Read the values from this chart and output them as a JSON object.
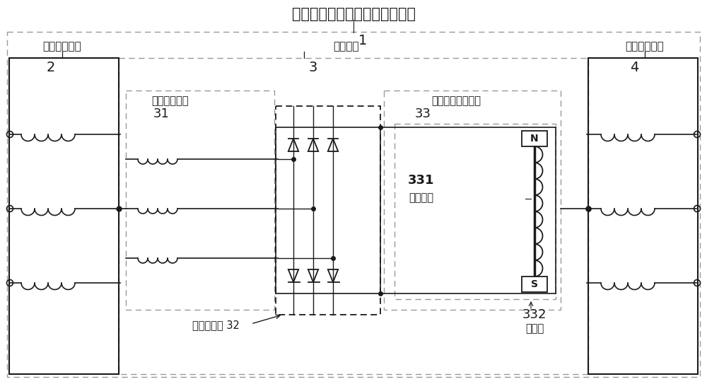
{
  "title": "无刷交流复合励磁无刷直流电机",
  "label_1": "1",
  "label_2": "2",
  "label_3": "3",
  "label_4": "4",
  "label_31": "31",
  "label_32": "32",
  "label_33": "33",
  "label_331": "331",
  "label_332": "332",
  "text_stator_field": "定子励磁绕组",
  "text_motor_rotor": "电机转子",
  "text_stator_power": "定子功率绕组",
  "text_rotor_field": "转子励磁绕组",
  "text_rotating_rect": "旋转整流器",
  "text_rotor_power": "转子功率励磁单元",
  "text_dc_winding": "直流绕组",
  "text_permanent_magnet": "永磁体",
  "bg_color": "#ffffff",
  "line_color": "#1a1a1a",
  "gray_color": "#999999",
  "title_fontsize": 15,
  "label_fontsize": 13,
  "small_fontsize": 10.5
}
